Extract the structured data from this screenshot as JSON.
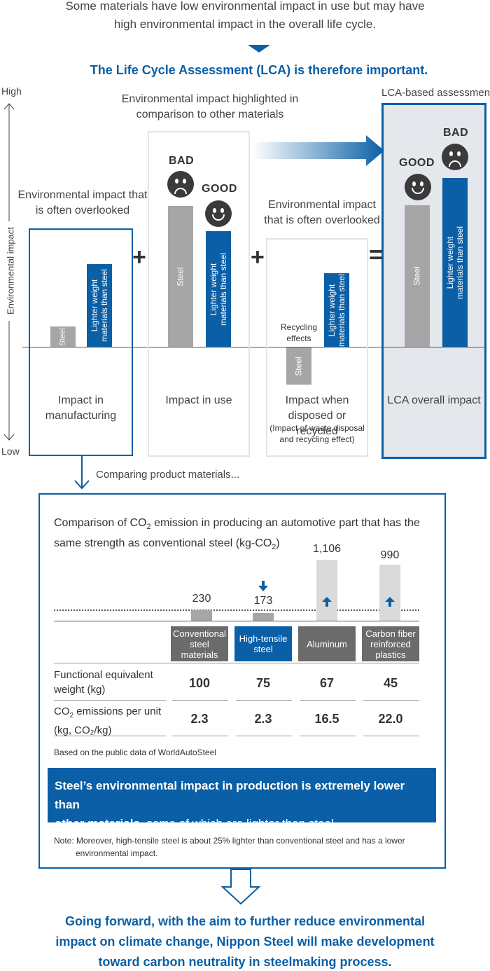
{
  "intro": {
    "line1": "Some materials have low environmental impact in use but may have",
    "line2": "high environmental impact in the overall life cycle.",
    "lca_important": "The Life Cycle Assessment (LCA) is therefore important."
  },
  "axis": {
    "high": "High",
    "low": "Low",
    "label": "Environmental impact"
  },
  "manufacturing": {
    "note_line1": "Environmental impact that",
    "note_line2": "is often overlooked",
    "steel": "Steel",
    "light_line1": "Lighter weight",
    "light_line2": "materials than steel",
    "title_line1": "Impact in",
    "title_line2": "manufacturing"
  },
  "use": {
    "note_line1": "Environmental impact highlighted in",
    "note_line2": "comparison to other materials",
    "bad": "BAD",
    "good": "GOOD",
    "steel": "Steel",
    "light_line1": "Lighter weight",
    "light_line2": "materials than steel",
    "title": "Impact in use"
  },
  "disposal": {
    "note_line1": "Environmental impact",
    "note_line2": "that is often overlooked",
    "recycling_line1": "Recycling",
    "recycling_line2": "effects",
    "steel": "Steel",
    "light_line1": "Lighter weight",
    "light_line2": "materials than steel",
    "title_line1": "Impact when",
    "title_line2": "disposed or recycled",
    "sub_line1": "(Impact of waste disposal",
    "sub_line2": "and recycling effect)"
  },
  "lca": {
    "header": "LCA-based assessment",
    "good": "GOOD",
    "bad": "BAD",
    "steel": "Steel",
    "light_line1": "Lighter weight",
    "light_line2": "materials than steel",
    "title": "LCA overall impact"
  },
  "operators": {
    "plus": "+",
    "equals": "="
  },
  "comparing": "Comparing product materials...",
  "comparison": {
    "title_line1_a": "Comparison of CO",
    "title_line1_sub": "2",
    "title_line1_b": " emission in producing an automotive part that has the",
    "title_line2_a": "same strength as conventional steel (kg-CO",
    "title_line2_sub": "2",
    "title_line2_b": ")",
    "materials": [
      {
        "line1": "Conventional",
        "line2": "steel materials",
        "emission": "230",
        "weight": "100",
        "per_unit": "2.3",
        "color": "#6b6b6b"
      },
      {
        "line1": "High-tensile",
        "line2": "steel",
        "emission": "173",
        "weight": "75",
        "per_unit": "2.3",
        "color": "#0a5fa6"
      },
      {
        "line1": "Aluminum",
        "line2": "",
        "emission": "1,106",
        "weight": "67",
        "per_unit": "16.5",
        "color": "#6b6b6b"
      },
      {
        "line1": "Carbon fiber",
        "line2": "reinforced plastics",
        "emission": "990",
        "weight": "45",
        "per_unit": "22.0",
        "color": "#6b6b6b"
      }
    ],
    "row1_line1": "Functional equivalent",
    "row1_line2": "weight (kg)",
    "row2_line1_a": "CO",
    "row2_line1_sub": "2",
    "row2_line1_b": " emissions per unit",
    "row2_line2": "(kg, CO₂/kg)",
    "source": "Based on the public data of WorldAutoSteel",
    "callout_bold_1": "Steel’s environmental impact in production is extremely lower than",
    "callout_bold_2": "other materials",
    "callout_rest": ", some of which are lighter than steel.",
    "note_line1": "Note: Moreover, high-tensile steel is about 25% lighter than conventional steel and has a lower",
    "note_line2": "environmental impact."
  },
  "conclusion": {
    "line1": "Going forward, with the aim to further reduce environmental",
    "line2": "impact on climate change, Nippon Steel will make development",
    "line3": "toward carbon neutrality in steelmaking process."
  },
  "colors": {
    "brand_blue": "#0a5fa6",
    "steel_gray": "#a6a6a6",
    "light_gray_bar": "#dadada",
    "lca_panel": "#e4e7eb"
  }
}
